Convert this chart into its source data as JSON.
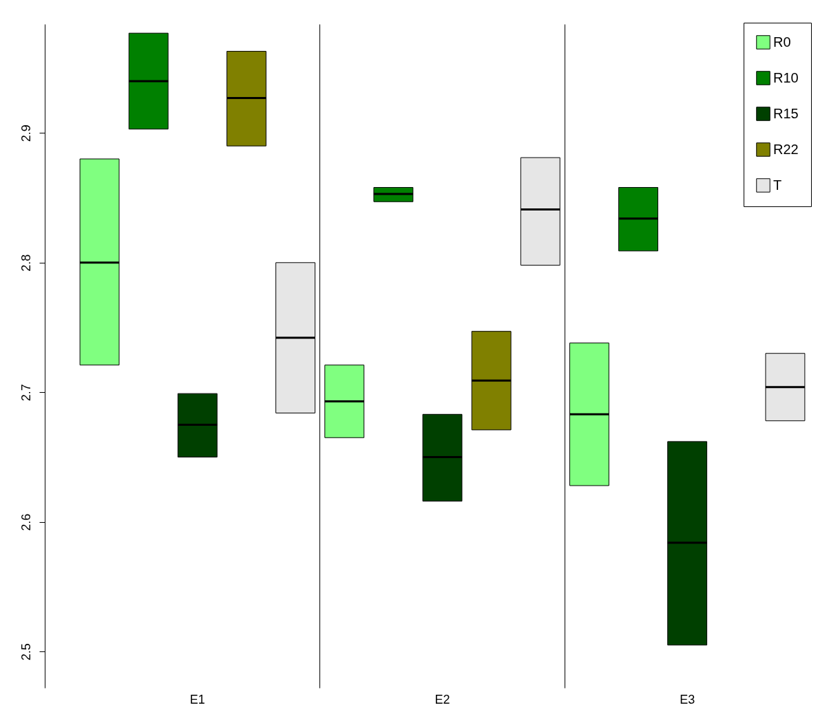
{
  "chart_data": {
    "type": "box",
    "categories": [
      "E1",
      "E2",
      "E3"
    ],
    "ylim": [
      2.472,
      2.984
    ],
    "yticks": [
      2.5,
      2.6,
      2.7,
      2.8,
      2.9
    ],
    "grid": "x",
    "legend": "top right",
    "series": [
      {
        "name": "R0",
        "color": "#80ff80",
        "boxes": [
          {
            "low": 2.721,
            "q1": 2.721,
            "median": 2.8,
            "q3": 2.88,
            "high": 2.88
          },
          {
            "low": 2.665,
            "q1": 2.665,
            "median": 2.693,
            "q3": 2.721,
            "high": 2.721
          },
          {
            "low": 2.628,
            "q1": 2.628,
            "median": 2.683,
            "q3": 2.738,
            "high": 2.738
          }
        ]
      },
      {
        "name": "R10",
        "color": "#008000",
        "boxes": [
          {
            "low": 2.903,
            "q1": 2.903,
            "median": 2.94,
            "q3": 2.977,
            "high": 2.977
          },
          {
            "low": 2.847,
            "q1": 2.847,
            "median": 2.853,
            "q3": 2.858,
            "high": 2.858
          },
          {
            "low": 2.809,
            "q1": 2.809,
            "median": 2.834,
            "q3": 2.858,
            "high": 2.858
          }
        ]
      },
      {
        "name": "R15",
        "color": "#004000",
        "boxes": [
          {
            "low": 2.65,
            "q1": 2.65,
            "median": 2.675,
            "q3": 2.699,
            "high": 2.699
          },
          {
            "low": 2.616,
            "q1": 2.616,
            "median": 2.65,
            "q3": 2.683,
            "high": 2.683
          },
          {
            "low": 2.505,
            "q1": 2.505,
            "median": 2.584,
            "q3": 2.662,
            "high": 2.662
          }
        ]
      },
      {
        "name": "R22",
        "color": "#808000",
        "boxes": [
          {
            "low": 2.89,
            "q1": 2.89,
            "median": 2.927,
            "q3": 2.963,
            "high": 2.963
          },
          {
            "low": 2.671,
            "q1": 2.671,
            "median": 2.709,
            "q3": 2.747,
            "high": 2.747
          },
          null
        ]
      },
      {
        "name": "T",
        "color": "#e6e6e6",
        "boxes": [
          {
            "low": 2.684,
            "q1": 2.684,
            "median": 2.742,
            "q3": 2.8,
            "high": 2.8
          },
          {
            "low": 2.798,
            "q1": 2.798,
            "median": 2.841,
            "q3": 2.881,
            "high": 2.881
          },
          {
            "low": 2.678,
            "q1": 2.678,
            "median": 2.704,
            "q3": 2.73,
            "high": 2.73
          }
        ]
      }
    ]
  }
}
